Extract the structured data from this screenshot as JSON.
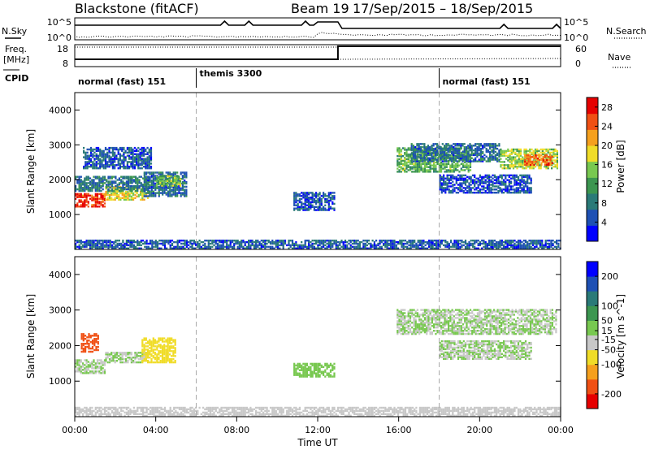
{
  "header": {
    "radar": "Blackstone (fitACF)",
    "beam": "Beam 19",
    "dates": "17/Sep/2015 – 18/Sep/2015"
  },
  "noise_panel": {
    "left_label": "N.Sky",
    "right_label": "N.Search",
    "left_ticks": [
      "10^5",
      "10^0"
    ],
    "right_ticks": [
      "10^5",
      "10^0"
    ]
  },
  "freq_panel": {
    "left_label_1": "Freq.",
    "left_label_2": "[MHz]",
    "right_label": "Nave",
    "left_ticks": [
      "18",
      "8"
    ],
    "right_ticks": [
      "60",
      "0"
    ]
  },
  "cpid": {
    "label": "CPID",
    "modes": [
      {
        "name": "normal (fast) 151",
        "start_h": 0
      },
      {
        "name": "themis 3300",
        "start_h": 6
      },
      {
        "name": "normal (fast) 151",
        "start_h": 18
      }
    ]
  },
  "x_axis": {
    "label": "Time UT",
    "ticks": [
      "00:00",
      "04:00",
      "08:00",
      "12:00",
      "16:00",
      "20:00",
      "00:00"
    ]
  },
  "chart_data": [
    {
      "type": "heatmap",
      "name": "power",
      "xlabel": "Time UT",
      "ylabel": "Slant Range [km]",
      "x_range_hours": [
        0,
        24
      ],
      "ylim": [
        0,
        4500
      ],
      "y_ticks": [
        1000,
        2000,
        3000,
        4000
      ],
      "colorbar": {
        "label": "Power [dB]",
        "ticks": [
          "28",
          "24",
          "20",
          "16",
          "12",
          "8",
          "4"
        ],
        "range": [
          0,
          30
        ],
        "colors": [
          "#0000ff",
          "#1e50b4",
          "#2a7a78",
          "#3c9650",
          "#78c850",
          "#f0dc28",
          "#f5a01e",
          "#f05014",
          "#e60000"
        ]
      },
      "echo_regions": [
        {
          "t": [
            0.0,
            1.5
          ],
          "r": [
            1200,
            1600
          ],
          "level": 27
        },
        {
          "t": [
            1.5,
            3.6
          ],
          "r": [
            1400,
            1800
          ],
          "level": 18
        },
        {
          "t": [
            0.0,
            3.6
          ],
          "r": [
            1650,
            2100
          ],
          "level": 8
        },
        {
          "t": [
            0.4,
            3.8
          ],
          "r": [
            2300,
            2900
          ],
          "level": 6
        },
        {
          "t": [
            3.4,
            5.5
          ],
          "r": [
            1500,
            2200
          ],
          "level": 7
        },
        {
          "t": [
            4.0,
            5.2
          ],
          "r": [
            1800,
            2100
          ],
          "level": 14
        },
        {
          "t": [
            15.9,
            19.5
          ],
          "r": [
            2200,
            2900
          ],
          "level": 13
        },
        {
          "t": [
            16.6,
            21.0
          ],
          "r": [
            2500,
            3000
          ],
          "level": 7
        },
        {
          "t": [
            21.0,
            23.8
          ],
          "r": [
            2300,
            2850
          ],
          "level": 16
        },
        {
          "t": [
            22.2,
            23.6
          ],
          "r": [
            2400,
            2700
          ],
          "level": 24
        },
        {
          "t": [
            18.0,
            22.5
          ],
          "r": [
            1600,
            2100
          ],
          "level": 5
        },
        {
          "t": [
            10.8,
            12.8
          ],
          "r": [
            1100,
            1600
          ],
          "level": 5
        },
        {
          "t": [
            0.0,
            24.0
          ],
          "r": [
            0,
            250
          ],
          "level": 6
        }
      ],
      "mode_boundaries_h": [
        6,
        18
      ]
    },
    {
      "type": "heatmap",
      "name": "velocity",
      "xlabel": "Time UT",
      "ylabel": "Slant Range [km]",
      "x_range_hours": [
        0,
        24
      ],
      "ylim": [
        0,
        4500
      ],
      "y_ticks": [
        1000,
        2000,
        3000,
        4000
      ],
      "colorbar": {
        "label": "Velocity [m s^-1]",
        "ticks": [
          "200",
          "100",
          "50",
          "15",
          "-15",
          "-50",
          "-100",
          "-200"
        ],
        "range": [
          -250,
          250
        ],
        "colors": [
          "#e60000",
          "#f05014",
          "#f5a01e",
          "#f0dc28",
          "#c8c8c8",
          "#78c850",
          "#3c9650",
          "#2a7a78",
          "#1e50b4",
          "#0000ff"
        ]
      },
      "echo_regions": [
        {
          "t": [
            0.0,
            1.5
          ],
          "r": [
            1200,
            1600
          ],
          "v": 0
        },
        {
          "t": [
            1.5,
            3.6
          ],
          "r": [
            1500,
            1800
          ],
          "v": 0
        },
        {
          "t": [
            0.3,
            1.2
          ],
          "r": [
            1800,
            2300
          ],
          "v": -180
        },
        {
          "t": [
            3.3,
            5.0
          ],
          "r": [
            1500,
            2200
          ],
          "v": -60
        },
        {
          "t": [
            15.9,
            23.8
          ],
          "r": [
            2300,
            3000
          ],
          "v": 0
        },
        {
          "t": [
            18.0,
            22.5
          ],
          "r": [
            1600,
            2100
          ],
          "v": 0
        },
        {
          "t": [
            10.8,
            12.8
          ],
          "r": [
            1100,
            1500
          ],
          "v": 5
        },
        {
          "t": [
            0.0,
            24.0
          ],
          "r": [
            0,
            250
          ],
          "v": -40
        }
      ],
      "mode_boundaries_h": [
        6,
        18
      ]
    }
  ]
}
